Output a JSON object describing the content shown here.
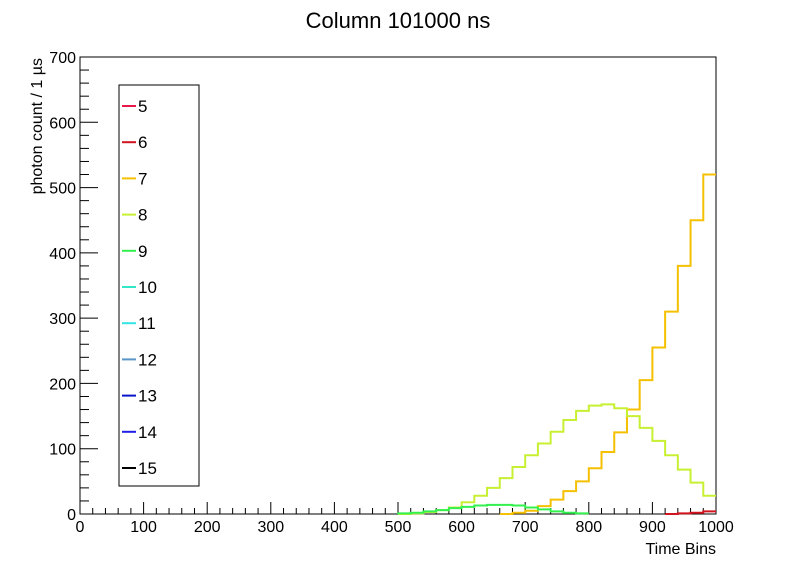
{
  "chart_data": {
    "type": "line",
    "title": "Column 101000 ns",
    "xlabel": "Time Bins",
    "ylabel": "photon count / 1 µs",
    "xlim": [
      0,
      1000
    ],
    "ylim": [
      0,
      700
    ],
    "x_ticks": [
      0,
      100,
      200,
      300,
      400,
      500,
      600,
      700,
      800,
      900,
      1000
    ],
    "y_ticks": [
      0,
      100,
      200,
      300,
      400,
      500,
      600,
      700
    ],
    "grid": false,
    "legend_position": "left",
    "bin_width": 20,
    "series": [
      {
        "name": "5",
        "color": "#e8184a",
        "x": [],
        "y": []
      },
      {
        "name": "6",
        "color": "#d2141e",
        "x": [
          920,
          940,
          960,
          980
        ],
        "y": [
          0,
          1,
          2,
          4
        ]
      },
      {
        "name": "7",
        "color": "#f5c000",
        "x": [
          660,
          680,
          700,
          720,
          740,
          760,
          780,
          800,
          820,
          840,
          860,
          880,
          900,
          920,
          940,
          960,
          980
        ],
        "y": [
          0,
          2,
          5,
          12,
          22,
          35,
          50,
          70,
          95,
          125,
          160,
          205,
          255,
          310,
          380,
          450,
          520
        ]
      },
      {
        "name": "8",
        "color": "#c8f032",
        "x": [
          500,
          520,
          540,
          560,
          580,
          600,
          620,
          640,
          660,
          680,
          700,
          720,
          740,
          760,
          780,
          800,
          820,
          840,
          860,
          880,
          900,
          920,
          940,
          960,
          980
        ],
        "y": [
          0,
          1,
          3,
          6,
          10,
          18,
          28,
          40,
          55,
          72,
          90,
          108,
          126,
          144,
          158,
          166,
          168,
          162,
          150,
          132,
          112,
          90,
          68,
          48,
          28
        ]
      },
      {
        "name": "9",
        "color": "#32f04e",
        "x": [
          500,
          520,
          540,
          560,
          580,
          600,
          620,
          640,
          660,
          680,
          700,
          720,
          740,
          760,
          780
        ],
        "y": [
          1,
          2,
          4,
          6,
          9,
          11,
          13,
          14,
          14,
          13,
          10,
          7,
          4,
          2,
          1
        ]
      },
      {
        "name": "10",
        "color": "#32e6c8",
        "x": [],
        "y": []
      },
      {
        "name": "11",
        "color": "#32e6e6",
        "x": [],
        "y": []
      },
      {
        "name": "12",
        "color": "#5a96c8",
        "x": [],
        "y": []
      },
      {
        "name": "13",
        "color": "#0a14c8",
        "x": [],
        "y": []
      },
      {
        "name": "14",
        "color": "#1e1ee6",
        "x": [],
        "y": []
      },
      {
        "name": "15",
        "color": "#000000",
        "x": [],
        "y": []
      }
    ]
  }
}
